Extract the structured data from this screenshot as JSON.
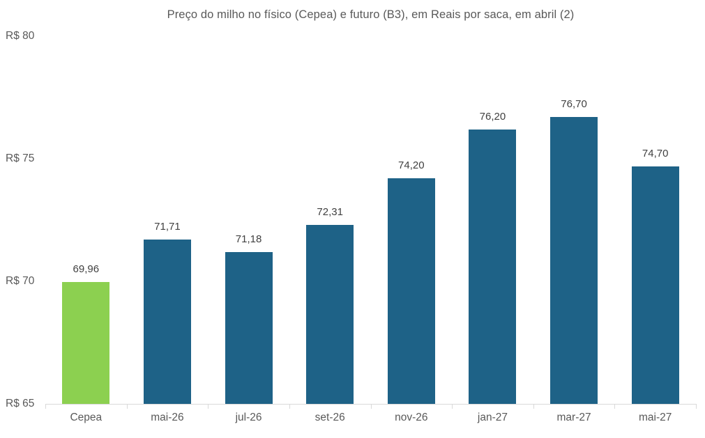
{
  "chart_data": {
    "type": "bar",
    "title": "Preço do milho no físico (Cepea) e futuro (B3), em Reais por saca, em abril (2)",
    "categories": [
      "Cepea",
      "mai-26",
      "jul-26",
      "set-26",
      "nov-26",
      "jan-27",
      "mar-27",
      "mai-27"
    ],
    "values": [
      69.96,
      71.71,
      71.18,
      72.31,
      74.2,
      76.2,
      76.7,
      74.7
    ],
    "value_labels": [
      "69,96",
      "71,71",
      "71,18",
      "72,31",
      "74,20",
      "76,20",
      "76,70",
      "74,70"
    ],
    "bar_colors": [
      "#8cd050",
      "#1e6287",
      "#1e6287",
      "#1e6287",
      "#1e6287",
      "#1e6287",
      "#1e6287",
      "#1e6287"
    ],
    "series_note": "first bar = Cepea spot price (green), remaining bars = B3 futures (blue)",
    "xlabel": "",
    "ylabel": "",
    "ylim": [
      65,
      80
    ],
    "yticks": [
      65,
      70,
      75,
      80
    ],
    "ytick_labels": [
      "R$ 65",
      "R$ 70",
      "R$ 75",
      "R$ 80"
    ],
    "grid": false,
    "legend": "none",
    "colors": {
      "cepea_bar": "#8cd050",
      "futures_bar": "#1e6287",
      "axis_line": "#d9d9d9",
      "tick_text": "#595959",
      "value_label_text": "#404040",
      "title_text": "#595959",
      "background": "#ffffff"
    }
  }
}
